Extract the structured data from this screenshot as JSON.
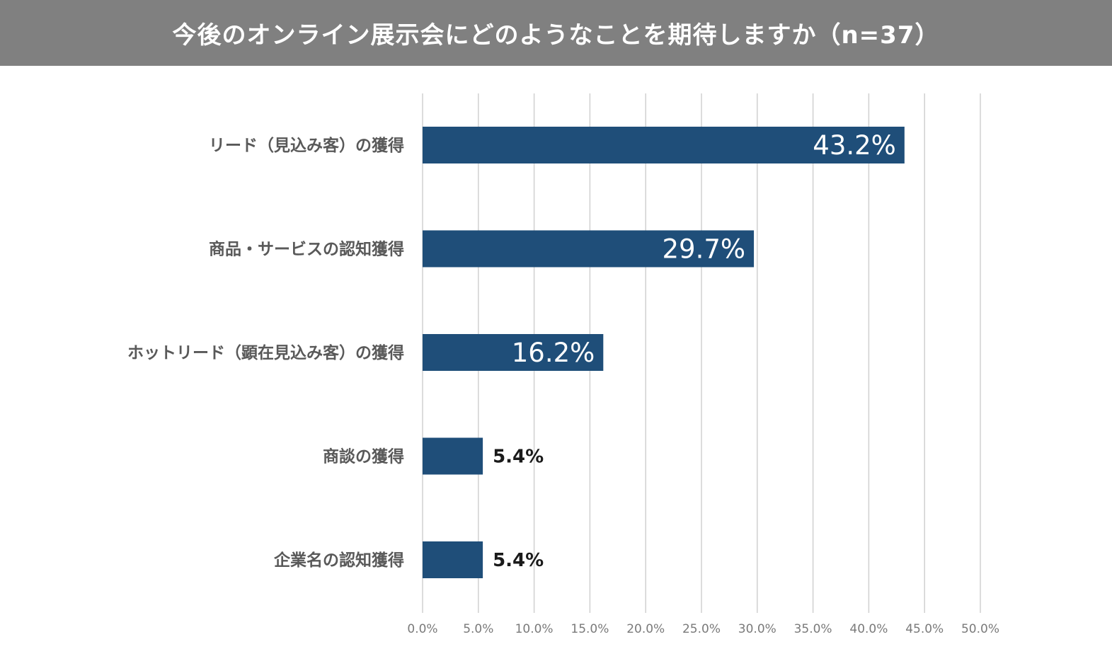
{
  "chart_data": {
    "type": "bar",
    "orientation": "horizontal",
    "title": "今後のオンライン展示会にどのようなことを期待しますか（n=37）",
    "categories": [
      "リード（見込み客）の獲得",
      "商品・サービスの認知獲得",
      "ホットリード（顕在見込み客）の獲得",
      "商談の獲得",
      "企業名の認知獲得"
    ],
    "values": [
      43.2,
      29.7,
      16.2,
      5.4,
      5.4
    ],
    "value_labels": [
      "43.2%",
      "29.7%",
      "16.2%",
      "5.4%",
      "5.4%"
    ],
    "xlim": [
      0,
      50
    ],
    "xticks": [
      "0.0%",
      "5.0%",
      "10.0%",
      "15.0%",
      "20.0%",
      "25.0%",
      "30.0%",
      "35.0%",
      "40.0%",
      "45.0%",
      "50.0%"
    ],
    "grid": true,
    "legend": "none",
    "colors": {
      "bar": "#1f4e79",
      "title_bar": "#808080"
    }
  }
}
